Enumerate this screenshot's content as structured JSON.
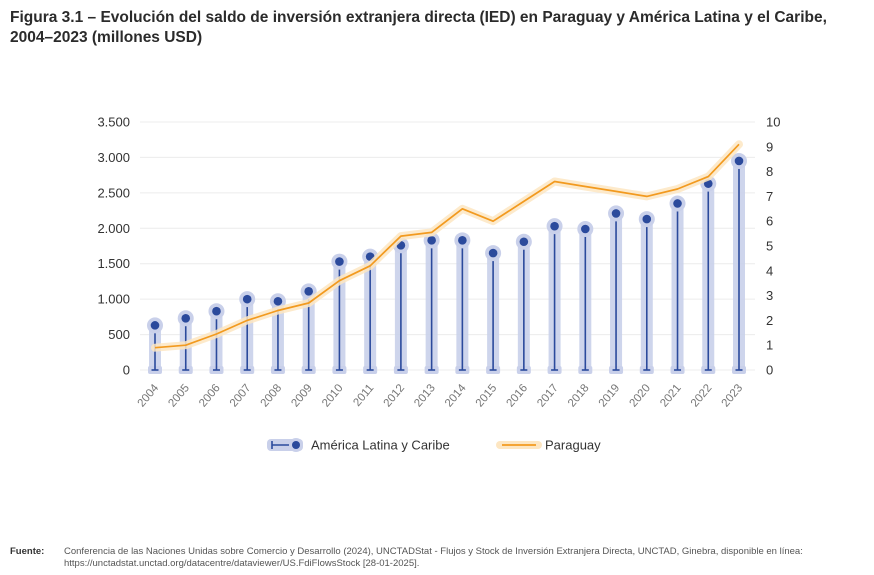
{
  "figure": {
    "title": "Figura 3.1 – Evolución del saldo de inversión extranjera directa (IED) en Paraguay y América Latina y el Caribe, 2004–2023 (millones USD)",
    "source_label": "Fuente:",
    "source_text": "Conferencia de las Naciones Unidas sobre Comercio y Desarrollo (2024), UNCTADStat - Flujos y Stock de Inversión Extranjera Directa, UNCTAD, Ginebra, disponible en línea: https://unctadstat.unctad.org/datacentre/dataviewer/US.FdiFlowsStock [28-01-2025]."
  },
  "chart_data": {
    "type": "bar",
    "categories": [
      "2004",
      "2005",
      "2006",
      "2007",
      "2008",
      "2009",
      "2010",
      "2011",
      "2012",
      "2013",
      "2014",
      "2015",
      "2016",
      "2017",
      "2018",
      "2019",
      "2020",
      "2021",
      "2022",
      "2023"
    ],
    "series": [
      {
        "name": "América Latina y Caribe",
        "render": "lollipop",
        "axis": "left",
        "color": "#2b4a9c",
        "halo_color": "#c9d0ea",
        "values": [
          630,
          730,
          830,
          1000,
          970,
          1110,
          1530,
          1600,
          1760,
          1830,
          1830,
          1650,
          1810,
          2030,
          1990,
          2210,
          2130,
          2350,
          2630,
          2950
        ]
      },
      {
        "name": "Paraguay",
        "render": "line",
        "axis": "right",
        "color": "#f29a1f",
        "halo_color": "#fde6c2",
        "values": [
          0.9,
          1.0,
          1.45,
          2.0,
          2.4,
          2.7,
          3.6,
          4.2,
          5.4,
          5.55,
          6.5,
          6.0,
          6.8,
          7.6,
          7.4,
          7.2,
          7.0,
          7.3,
          7.8,
          9.1
        ]
      }
    ],
    "y_left": {
      "ylim": [
        0,
        3500
      ],
      "ticks": [
        "0",
        "500",
        "1.000",
        "1.500",
        "2.000",
        "2.500",
        "3.000",
        "3.500"
      ],
      "tick_values": [
        0,
        500,
        1000,
        1500,
        2000,
        2500,
        3000,
        3500
      ]
    },
    "y_right": {
      "ylim": [
        0,
        10
      ],
      "ticks": [
        "0",
        "1",
        "2",
        "3",
        "4",
        "5",
        "6",
        "7",
        "8",
        "9",
        "10"
      ],
      "tick_values": [
        0,
        1,
        2,
        3,
        4,
        5,
        6,
        7,
        8,
        9,
        10
      ]
    },
    "grid": true,
    "legend": "bottom-center",
    "xlabel": "",
    "ylabel": ""
  }
}
